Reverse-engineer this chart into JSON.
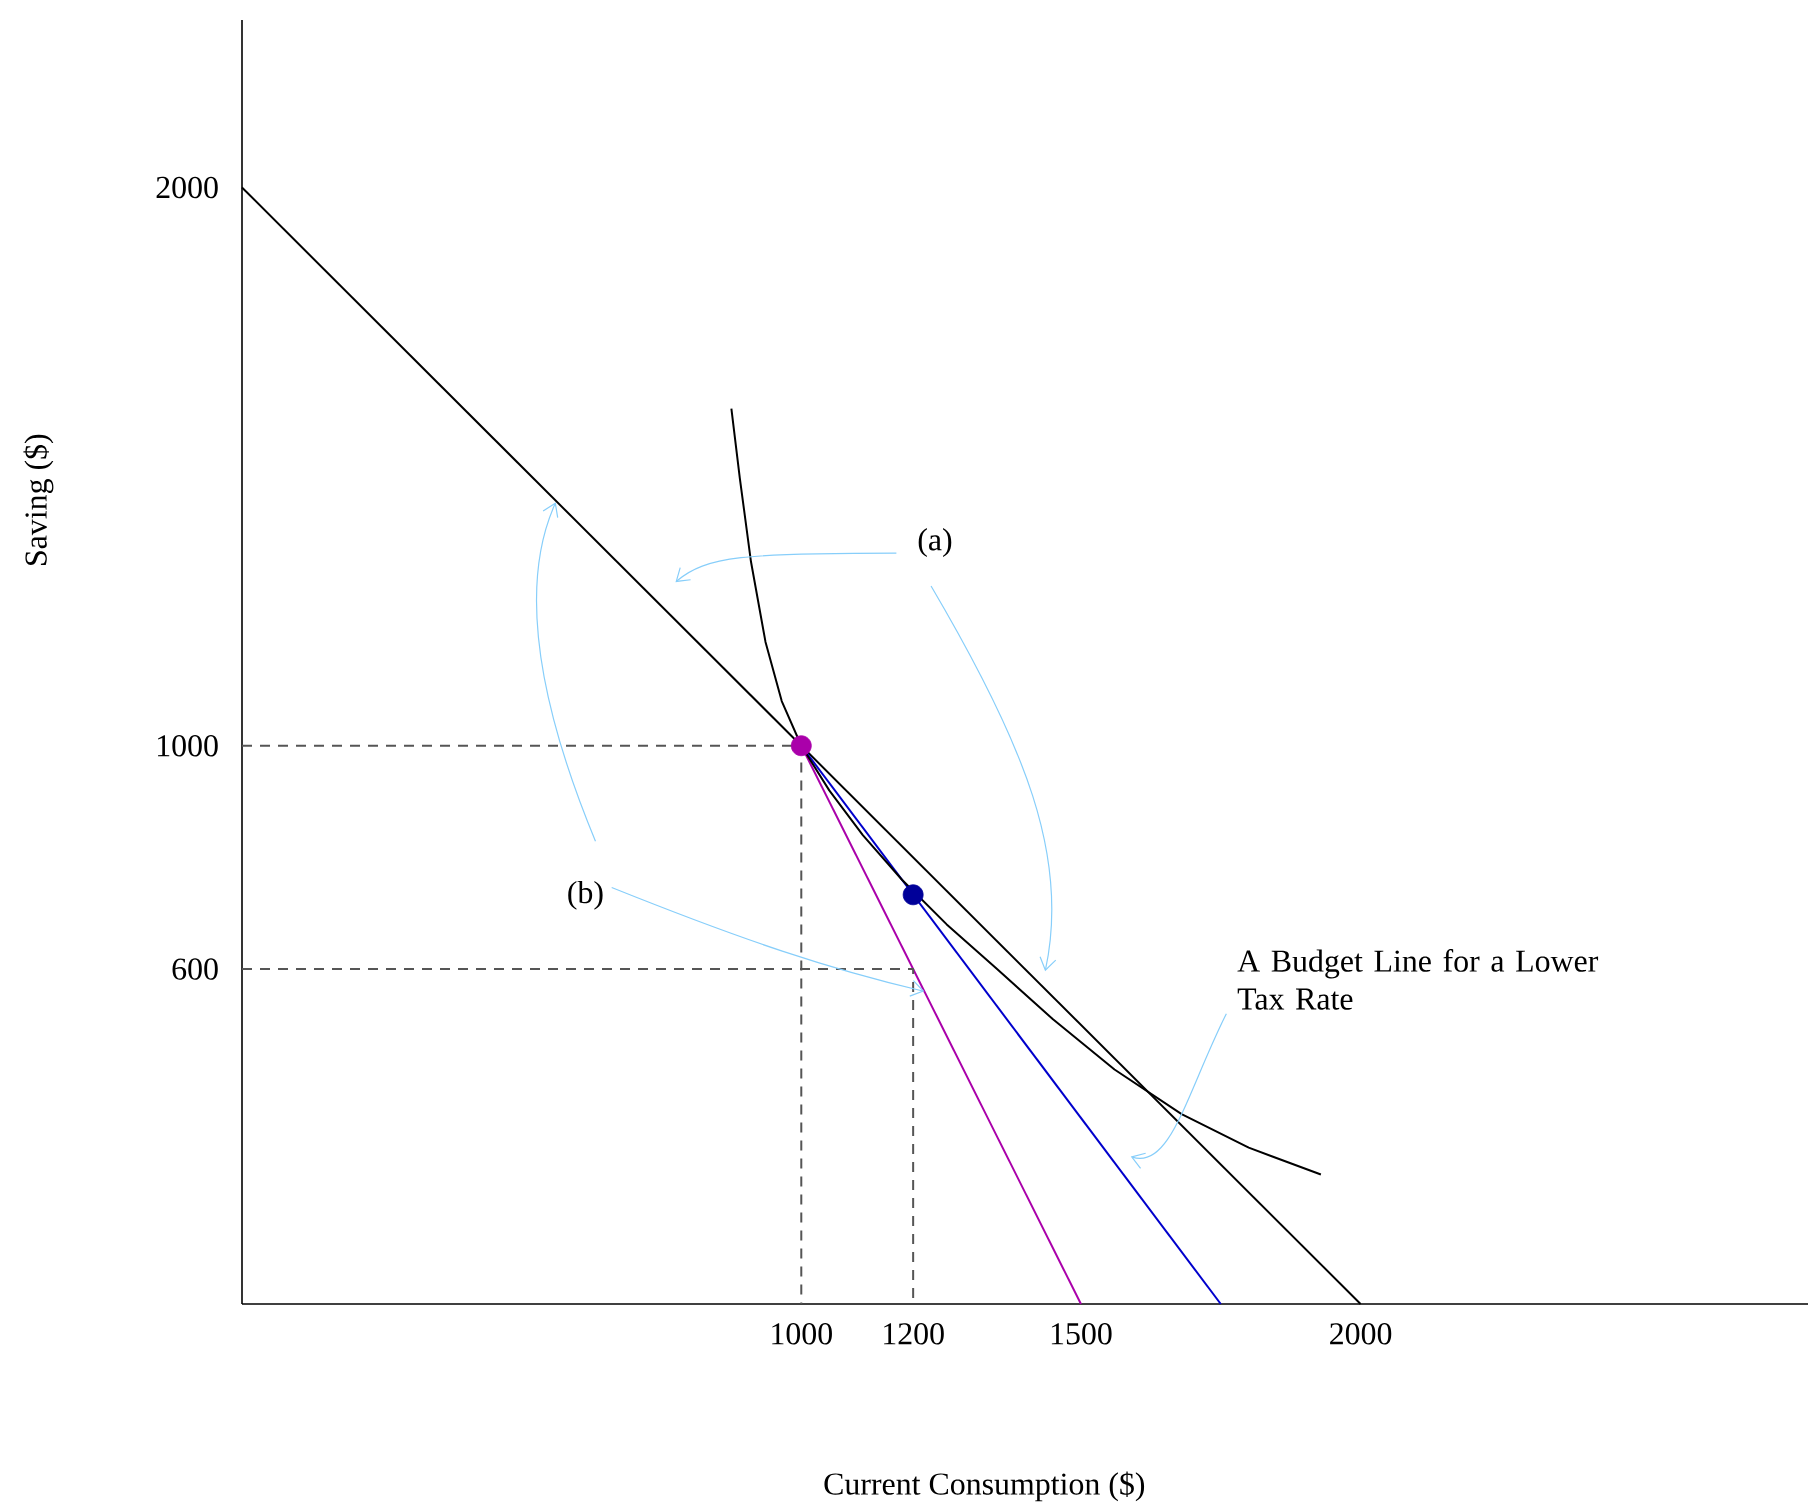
{
  "chart_data": {
    "type": "line",
    "xlabel": "Current Consumption ($)",
    "ylabel": "Saving ($)",
    "xlim": [
      0,
      2800
    ],
    "ylim": [
      0,
      2300
    ],
    "xticks": [
      1000,
      1200,
      1500,
      2000
    ],
    "yticks": [
      600,
      1000,
      2000
    ],
    "grid": false,
    "series": [
      {
        "color": "#000000",
        "line_style": "solid",
        "x": [
          0,
          2000
        ],
        "values": [
          2000,
          0
        ]
      },
      {
        "color": "#aa00aa",
        "line_style": "solid",
        "x": [
          1000,
          1500
        ],
        "values": [
          1000,
          0
        ]
      },
      {
        "color": "#0000cc",
        "line_style": "solid",
        "x": [
          1000,
          1750
        ],
        "values": [
          1000,
          0
        ]
      },
      {
        "color": "#000000",
        "line_style": "solid",
        "x": [
          875,
          890,
          910,
          936,
          965,
          1000,
          1050,
          1110,
          1180,
          1260,
          1350,
          1450,
          1560,
          1680,
          1800,
          1929
        ],
        "values": [
          1604,
          1480,
          1330,
          1186,
          1080,
          1000,
          920,
          840,
          760,
          680,
          600,
          510,
          420,
          340,
          280,
          232
        ]
      },
      {
        "color": "#555555",
        "line_style": "dashed",
        "x": [
          0,
          1000,
          1000
        ],
        "values": [
          1000,
          1000,
          0
        ]
      },
      {
        "color": "#555555",
        "line_style": "dashed",
        "x": [
          0,
          1200,
          1200
        ],
        "values": [
          600,
          600,
          0
        ]
      },
      {
        "type": "scatter",
        "color": "#aa00aa",
        "marker": "circle",
        "x": [
          1000
        ],
        "values": [
          1000
        ]
      },
      {
        "type": "scatter",
        "color": "#000099",
        "marker": "circle",
        "x": [
          1200
        ],
        "values": [
          733
        ]
      }
    ],
    "annotations": [
      "(a)",
      {
        "text": "(b)",
        "x": 1220,
        "y": 560
      },
      "A Budget Line for a Lower Tax Rate"
    ]
  }
}
